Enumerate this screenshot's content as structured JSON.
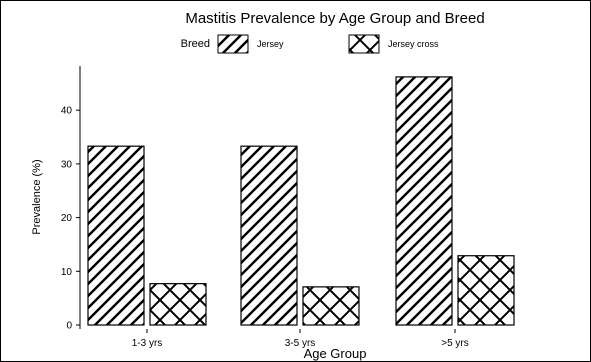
{
  "chart_data": {
    "type": "bar",
    "title": "Mastitis Prevalence by Age Group and Breed",
    "legend_title": "Breed",
    "legend_position": "top",
    "xlabel": "Age Group",
    "ylabel": "Prevalence (%)",
    "categories": [
      "1-3 yrs",
      "3-5 yrs",
      ">5 yrs"
    ],
    "series": [
      {
        "name": "Jersey",
        "pattern": "diagonal-stripes",
        "values": [
          33.3,
          33.3,
          46.2
        ]
      },
      {
        "name": "Jersey cross",
        "pattern": "crosshatch",
        "values": [
          7.7,
          7.1,
          12.9
        ]
      }
    ],
    "yticks": [
      "0",
      "10",
      "20",
      "30",
      "40"
    ],
    "ylim": [
      0,
      48
    ],
    "grid": false,
    "colors": {
      "fill": "#ffffff",
      "stroke": "#000000"
    }
  }
}
